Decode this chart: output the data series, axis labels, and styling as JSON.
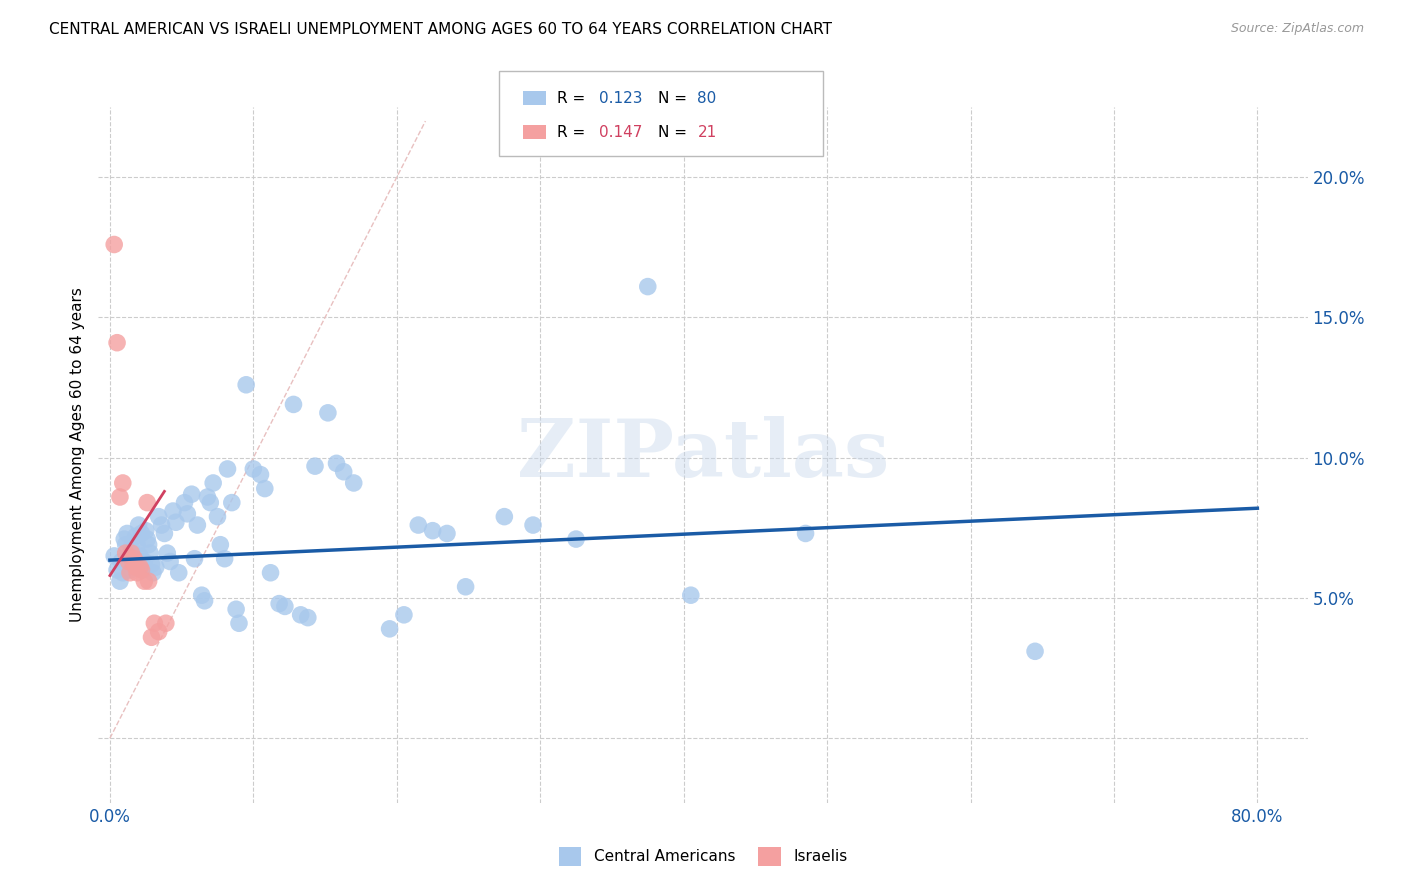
{
  "title": "CENTRAL AMERICAN VS ISRAELI UNEMPLOYMENT AMONG AGES 60 TO 64 YEARS CORRELATION CHART",
  "source": "Source: ZipAtlas.com",
  "ylabel": "Unemployment Among Ages 60 to 64 years",
  "x_ticks": [
    0.0,
    0.1,
    0.2,
    0.3,
    0.4,
    0.5,
    0.6,
    0.7,
    0.8
  ],
  "y_ticks": [
    0.0,
    0.05,
    0.1,
    0.15,
    0.2
  ],
  "y_tick_labels": [
    "",
    "5.0%",
    "10.0%",
    "15.0%",
    "20.0%"
  ],
  "xlim": [
    -0.008,
    0.835
  ],
  "ylim": [
    -0.023,
    0.225
  ],
  "blue_color": "#A8C8EC",
  "pink_color": "#F4A0A0",
  "blue_line_color": "#1A5BA6",
  "pink_line_color": "#D04060",
  "ref_line_color": "#E8C0C0",
  "watermark": "ZIPatlas",
  "ca_x": [
    0.003,
    0.005,
    0.007,
    0.008,
    0.009,
    0.01,
    0.011,
    0.012,
    0.013,
    0.014,
    0.015,
    0.016,
    0.017,
    0.018,
    0.019,
    0.02,
    0.021,
    0.022,
    0.023,
    0.024,
    0.025,
    0.026,
    0.027,
    0.028,
    0.029,
    0.03,
    0.032,
    0.034,
    0.036,
    0.038,
    0.04,
    0.042,
    0.044,
    0.046,
    0.048,
    0.052,
    0.054,
    0.057,
    0.059,
    0.061,
    0.064,
    0.066,
    0.068,
    0.07,
    0.072,
    0.075,
    0.077,
    0.08,
    0.082,
    0.085,
    0.088,
    0.09,
    0.095,
    0.1,
    0.105,
    0.108,
    0.112,
    0.118,
    0.122,
    0.128,
    0.133,
    0.138,
    0.143,
    0.152,
    0.158,
    0.163,
    0.17,
    0.195,
    0.205,
    0.215,
    0.225,
    0.235,
    0.248,
    0.275,
    0.295,
    0.325,
    0.375,
    0.405,
    0.485,
    0.645
  ],
  "ca_y": [
    0.065,
    0.06,
    0.056,
    0.063,
    0.059,
    0.071,
    0.069,
    0.073,
    0.064,
    0.06,
    0.068,
    0.066,
    0.064,
    0.072,
    0.069,
    0.076,
    0.065,
    0.073,
    0.06,
    0.063,
    0.074,
    0.071,
    0.069,
    0.066,
    0.062,
    0.059,
    0.061,
    0.079,
    0.076,
    0.073,
    0.066,
    0.063,
    0.081,
    0.077,
    0.059,
    0.084,
    0.08,
    0.087,
    0.064,
    0.076,
    0.051,
    0.049,
    0.086,
    0.084,
    0.091,
    0.079,
    0.069,
    0.064,
    0.096,
    0.084,
    0.046,
    0.041,
    0.126,
    0.096,
    0.094,
    0.089,
    0.059,
    0.048,
    0.047,
    0.119,
    0.044,
    0.043,
    0.097,
    0.116,
    0.098,
    0.095,
    0.091,
    0.039,
    0.044,
    0.076,
    0.074,
    0.073,
    0.054,
    0.079,
    0.076,
    0.071,
    0.161,
    0.051,
    0.073,
    0.031
  ],
  "il_x": [
    0.003,
    0.005,
    0.007,
    0.009,
    0.011,
    0.013,
    0.014,
    0.015,
    0.016,
    0.017,
    0.018,
    0.019,
    0.021,
    0.022,
    0.024,
    0.026,
    0.027,
    0.029,
    0.031,
    0.034,
    0.039
  ],
  "il_y": [
    0.176,
    0.141,
    0.086,
    0.091,
    0.066,
    0.063,
    0.059,
    0.066,
    0.063,
    0.064,
    0.061,
    0.059,
    0.061,
    0.06,
    0.056,
    0.084,
    0.056,
    0.036,
    0.041,
    0.038,
    0.041
  ],
  "ca_trend_x": [
    0.0,
    0.8
  ],
  "ca_trend_y": [
    0.0635,
    0.082
  ],
  "il_trend_x": [
    0.0,
    0.038
  ],
  "il_trend_y": [
    0.058,
    0.088
  ],
  "ref_line_x": [
    0.0,
    0.22
  ],
  "ref_line_y": [
    0.0,
    0.22
  ]
}
